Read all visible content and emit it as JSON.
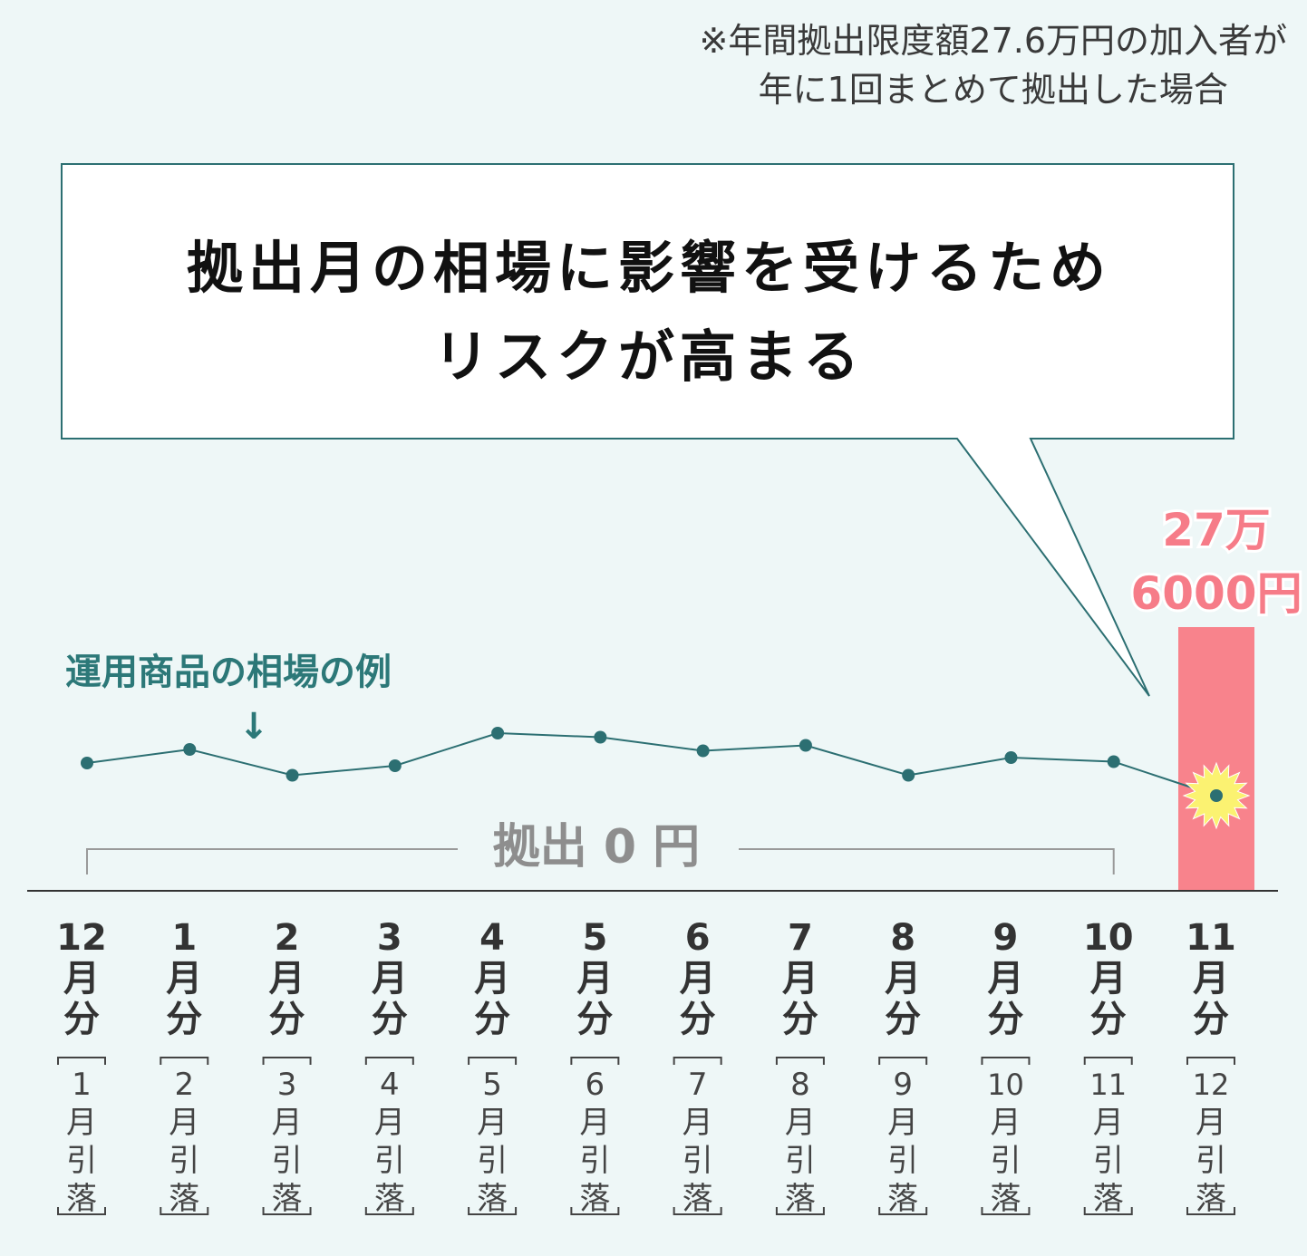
{
  "note": {
    "line1": "※年間拠出限度額27.6万円の加入者が",
    "line2": "年に1回まとめて拠出した場合"
  },
  "callout": {
    "line1": "拠出月の相場に影響を受けるため",
    "line2": "リスクが高まる"
  },
  "colors": {
    "background": "#eef7f7",
    "line": "#2c6f72",
    "marker": "#2c6f72",
    "bar": "#f8838c",
    "amount_text": "#f67c88",
    "burst": "#fbf271",
    "zero_bracket": "#9a9a9a"
  },
  "chart_data": {
    "type": "line",
    "title": "",
    "xlabel": "",
    "ylabel": "",
    "categories": [
      [
        "12",
        "月",
        "分"
      ],
      [
        "1",
        "月",
        "分"
      ],
      [
        "2",
        "月",
        "分"
      ],
      [
        "3",
        "月",
        "分"
      ],
      [
        "4",
        "月",
        "分"
      ],
      [
        "5",
        "月",
        "分"
      ],
      [
        "6",
        "月",
        "分"
      ],
      [
        "7",
        "月",
        "分"
      ],
      [
        "8",
        "月",
        "分"
      ],
      [
        "9",
        "月",
        "分"
      ],
      [
        "10",
        "月",
        "分"
      ],
      [
        "11",
        "月",
        "分"
      ]
    ],
    "sub_labels": [
      [
        "1",
        "月",
        "引",
        "落"
      ],
      [
        "2",
        "月",
        "引",
        "落"
      ],
      [
        "3",
        "月",
        "引",
        "落"
      ],
      [
        "4",
        "月",
        "引",
        "落"
      ],
      [
        "5",
        "月",
        "引",
        "落"
      ],
      [
        "6",
        "月",
        "引",
        "落"
      ],
      [
        "7",
        "月",
        "引",
        "落"
      ],
      [
        "8",
        "月",
        "引",
        "落"
      ],
      [
        "9",
        "月",
        "引",
        "落"
      ],
      [
        "10",
        "月",
        "引",
        "落"
      ],
      [
        "11",
        "月",
        "引",
        "落"
      ],
      [
        "12",
        "月",
        "引",
        "落"
      ]
    ],
    "series": [
      {
        "name": "運用商品の相場の例",
        "values": [
          52,
          62,
          43,
          50,
          74,
          71,
          61,
          65,
          43,
          56,
          53,
          28
        ],
        "arrow": "↓"
      }
    ],
    "ylim": [
      0,
      100
    ],
    "grid": false,
    "contribution": {
      "zero_months_label": "拠出 0 円",
      "zero_months_range": [
        0,
        10
      ],
      "bar_category_index": 11,
      "amount_line1": "27万",
      "amount_line2": "6000円",
      "amount_value": 276000
    }
  }
}
